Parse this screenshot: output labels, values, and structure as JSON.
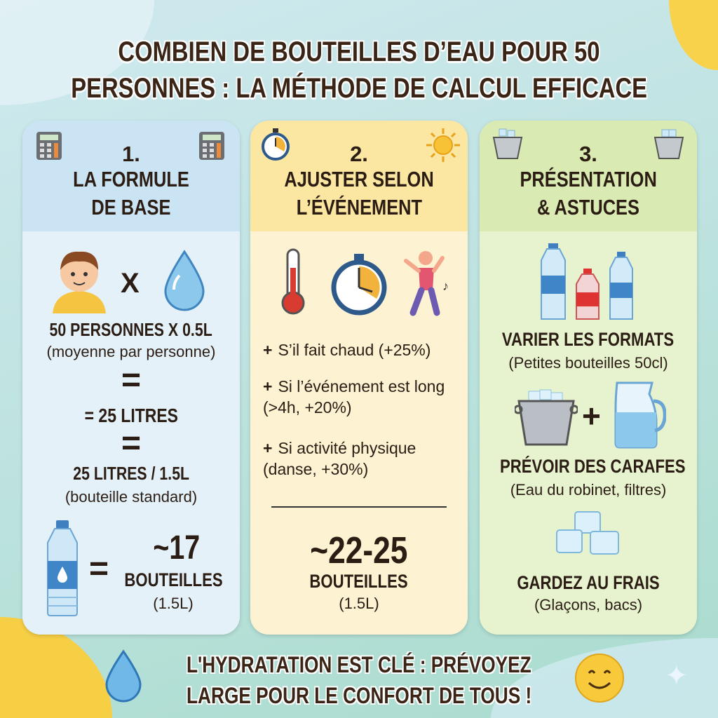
{
  "title": {
    "line1": "COMBIEN DE BOUTEILLES D’EAU POUR 50",
    "line2": "PERSONNES : LA MÉTHODE DE CALCUL EFFICACE"
  },
  "colors": {
    "card1": "#d9ecf6",
    "card2": "#fdefc6",
    "card3": "#e3f0c8",
    "text": "#2b1d14",
    "accent_yellow": "#f7cf45"
  },
  "cards": [
    {
      "number": "1.",
      "title_line1": "LA FORMULE",
      "title_line2": "DE BASE",
      "icons": [
        "calculator-icon",
        "person-icon",
        "water-drop-icon",
        "water-bottle-icon"
      ],
      "multiply": "X",
      "calc1": "50 PERSONNES X 0.5L",
      "calc1_note": "(moyenne par personne)",
      "equals": "=",
      "calc2": "= 25 LITRES",
      "calc3": "25 LITRES / 1.5L",
      "calc3_note": "(bouteille standard)",
      "result": "~17",
      "result_label": "BOUTEILLES",
      "result_unit": "(1.5L)"
    },
    {
      "number": "2.",
      "title_line1": "AJUSTER SELON",
      "title_line2": "L’ÉVÉNEMENT",
      "icons": [
        "stopwatch-icon",
        "sun-icon",
        "thermometer-icon",
        "dancer-icon"
      ],
      "items": [
        {
          "plus": "+",
          "text": "S’il fait chaud (+25%)"
        },
        {
          "plus": "+",
          "text": "Si l’événement est long (>4h, +20%)"
        },
        {
          "plus": "+",
          "text": "Si activité physique (danse, +30%)"
        }
      ],
      "result": "~22-25",
      "result_label": "BOUTEILLES",
      "result_unit": "(1.5L)"
    },
    {
      "number": "3.",
      "title_line1": "PRÉSENTATION",
      "title_line2": "& ASTUCES",
      "icons": [
        "ice-bucket-icon",
        "bottles-icon",
        "pitcher-icon",
        "ice-cubes-icon"
      ],
      "tips": [
        {
          "title": "VARIER LES FORMATS",
          "note": "(Petites bouteilles 50cl)"
        },
        {
          "title": "PRÉVOIR DES CARAFES",
          "note": "(Eau du robinet, filtres)"
        },
        {
          "title": "GARDEZ AU FRAIS",
          "note": "(Glaçons, bacs)"
        }
      ],
      "plus": "+"
    }
  ],
  "footer": {
    "line1": "L'HYDRATATION EST CLÉ : PRÉVOYEZ",
    "line2": "LARGE POUR LE CONFORT DE TOUS !"
  }
}
